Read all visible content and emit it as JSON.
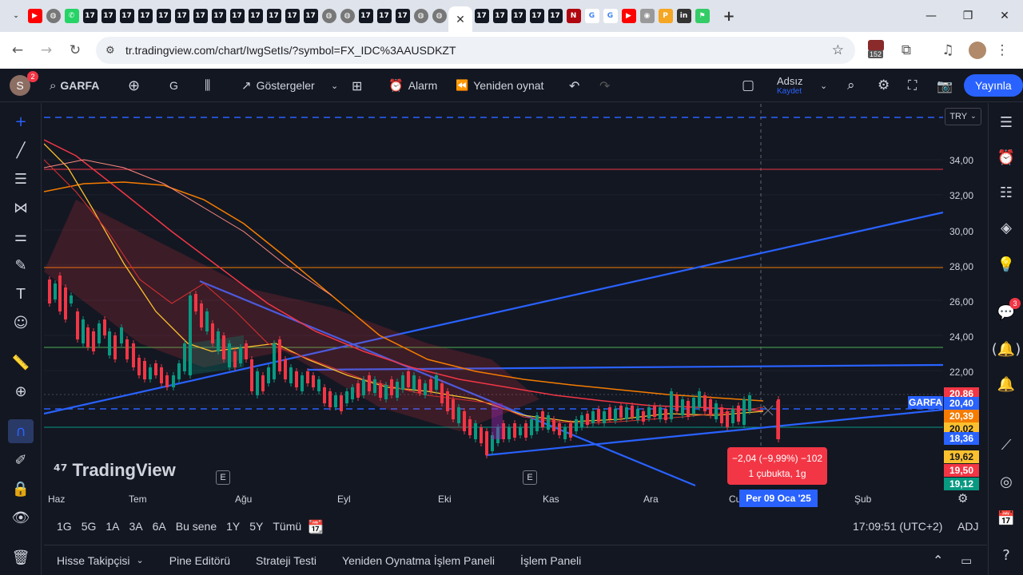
{
  "browser": {
    "url": "tr.tradingview.com/chart/IwgSetIs/?symbol=FX_IDC%3AAUSDKZT",
    "tab_icons": [
      "youtube-icon",
      "earth-icon",
      "whatsapp-icon",
      "tv-icon",
      "tv-icon",
      "tv-icon",
      "tv-icon",
      "tv-icon",
      "tv-icon",
      "tv-icon",
      "tv-icon",
      "tv-icon",
      "tv-icon",
      "tv-icon",
      "tv-icon",
      "tv-icon",
      "earth-icon",
      "earth-icon",
      "tv-icon",
      "tv-icon",
      "tv-icon",
      "earth-icon",
      "earth-icon",
      "tv-icon",
      "tv-icon",
      "tv-icon",
      "tv-icon",
      "tv-icon"
    ],
    "extension_badge": "152"
  },
  "toolbar": {
    "avatar_letter": "S",
    "avatar_badge": "2",
    "symbol": "GARFA",
    "interval": "G",
    "indicators": "Göstergeler",
    "alarm": "Alarm",
    "replay": "Yeniden oynat",
    "layout_name": "Adsız",
    "layout_save": "Kaydet",
    "publish": "Yayınla"
  },
  "chart": {
    "currency": "TRY",
    "watermark": "TradingView",
    "price_axis": [
      "34,00",
      "32,00",
      "30,00",
      "28,00",
      "26,00",
      "24,00",
      "22,00"
    ],
    "time_axis": [
      "Haz",
      "Tem",
      "Ağu",
      "Eyl",
      "Eki",
      "Kas",
      "Ara",
      "Cu",
      "Şub"
    ],
    "crosshair_date": "Per 09 Oca '25",
    "measure_line1": "−2,04 (−9,99%) −102",
    "measure_line2": "1 çubukta, 1g",
    "symbol_label": "GARFA",
    "earnings_marker": "E",
    "price_labels": [
      {
        "value": "20,86",
        "color": "#f23645"
      },
      {
        "value": "20,40",
        "color": "#2962ff"
      },
      {
        "value": "20,39",
        "color": "#f57c00"
      },
      {
        "value": "20,02",
        "color": "#fbc02d"
      },
      {
        "value": "18,36",
        "color": "#2962ff"
      },
      {
        "value": "19,62",
        "color": "#fbc02d"
      },
      {
        "value": "19,50",
        "color": "#f23645"
      },
      {
        "value": "19,12",
        "color": "#089981"
      }
    ]
  },
  "ranges": [
    "1G",
    "5G",
    "1A",
    "3A",
    "6A",
    "Bu sene",
    "1Y",
    "5Y",
    "Tümü"
  ],
  "clock": "17:09:51 (UTC+2)",
  "adj": "ADJ",
  "bottom_tabs": [
    "Hisse Takipçisi",
    "Pine Editörü",
    "Strateji Testi",
    "Yeniden Oynatma İşlem Paneli",
    "İşlem Paneli"
  ],
  "right_badges": {
    "chat": "3"
  }
}
